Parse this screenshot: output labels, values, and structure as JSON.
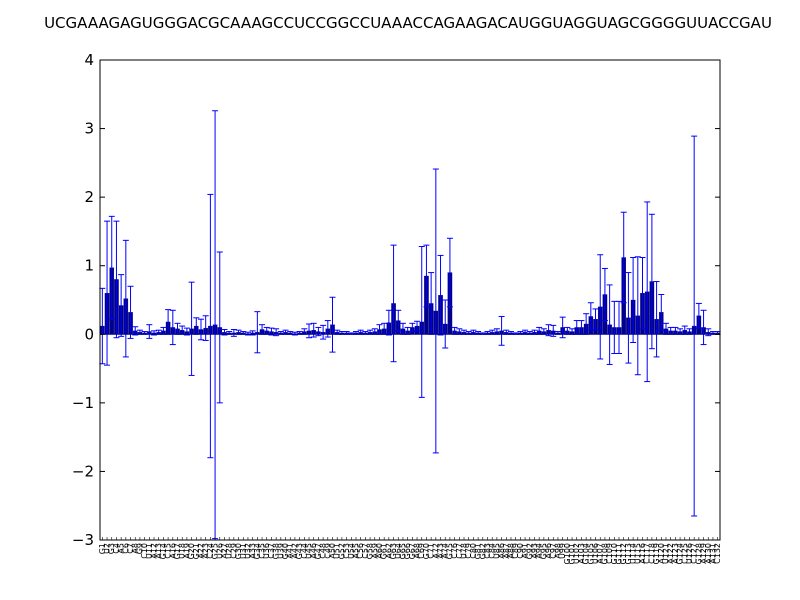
{
  "chart_data": {
    "type": "bar",
    "title": "UCGAAAGAGUGGGACGCAAAGCCUCCGGCCUAAACCAGAAGACAUGGUAGGUAGCGGGGUUACCGAU",
    "xlabel": "",
    "ylabel": "",
    "ylim": [
      -3,
      4
    ],
    "yticks": [
      "−3",
      "−2",
      "−1",
      "0",
      "1",
      "2",
      "3",
      "4"
    ],
    "grid": false,
    "bar_color": "#00008b",
    "errorbar_color": "#0000ff",
    "categories": [
      "G1",
      "U2",
      "G3",
      "C4",
      "A5",
      "C6",
      "C7",
      "A8",
      "G9",
      "C10",
      "U11",
      "A12",
      "A13",
      "G14",
      "C15",
      "A16",
      "G17",
      "U18",
      "A19",
      "G20",
      "G21",
      "A22",
      "A23",
      "C24",
      "G25",
      "U26",
      "A27",
      "U28",
      "C29",
      "G30",
      "U31",
      "U32",
      "A33",
      "G34",
      "C35",
      "U36",
      "C37",
      "G38",
      "U39",
      "G40",
      "A41",
      "A42",
      "G43",
      "C44",
      "U45",
      "A46",
      "G47",
      "C48",
      "C49",
      "A50",
      "U51",
      "G52",
      "C53",
      "U54",
      "A55",
      "C56",
      "C57",
      "G58",
      "A59",
      "A60",
      "G61",
      "A62",
      "G63",
      "U64",
      "G65",
      "G66",
      "G67",
      "A68",
      "C69",
      "G70",
      "C71",
      "A72",
      "A73",
      "A74",
      "G75",
      "C76",
      "C77",
      "U78",
      "C79",
      "C80",
      "G81",
      "G82",
      "C83",
      "C84",
      "U85",
      "A86",
      "A87",
      "A88",
      "C89",
      "C90",
      "A91",
      "G92",
      "A93",
      "A94",
      "G95",
      "A96",
      "C97",
      "A98",
      "U99",
      "G100",
      "G101",
      "U102",
      "A103",
      "G104",
      "G105",
      "U106",
      "A107",
      "G108",
      "C109",
      "G110",
      "G111",
      "G112",
      "G113",
      "U114",
      "U115",
      "A116",
      "C117",
      "C118",
      "G119",
      "A120",
      "U121",
      "A122",
      "A123",
      "G124",
      "C125",
      "U126",
      "C127",
      "G128",
      "A129",
      "A130",
      "A131",
      "C132"
    ],
    "series": [
      {
        "values": [
          0.12,
          0.6,
          0.97,
          0.8,
          0.42,
          0.52,
          0.32,
          0.05,
          0.03,
          0.02,
          0.04,
          0.02,
          0.03,
          0.05,
          0.18,
          0.1,
          0.08,
          0.06,
          0.04,
          0.08,
          0.12,
          0.07,
          0.09,
          0.12,
          0.14,
          0.1,
          0.03,
          0.02,
          0.02,
          0.03,
          0.02,
          0.01,
          0.02,
          0.03,
          0.07,
          0.05,
          0.04,
          0.03,
          0.02,
          0.03,
          0.02,
          0.01,
          0.02,
          0.04,
          0.05,
          0.06,
          0.04,
          0.03,
          0.08,
          0.14,
          0.03,
          0.02,
          0.02,
          0.01,
          0.02,
          0.03,
          0.02,
          0.03,
          0.04,
          0.07,
          0.08,
          0.17,
          0.45,
          0.2,
          0.08,
          0.05,
          0.1,
          0.12,
          0.18,
          0.85,
          0.45,
          0.34,
          0.57,
          0.15,
          0.9,
          0.05,
          0.04,
          0.03,
          0.02,
          0.03,
          0.02,
          0.01,
          0.02,
          0.03,
          0.04,
          0.05,
          0.03,
          0.02,
          0.01,
          0.02,
          0.03,
          0.02,
          0.03,
          0.05,
          0.04,
          0.06,
          0.05,
          0.02,
          0.1,
          0.05,
          0.04,
          0.1,
          0.1,
          0.15,
          0.26,
          0.22,
          0.4,
          0.58,
          0.14,
          0.1,
          0.1,
          1.12,
          0.24,
          0.5,
          0.27,
          0.6,
          0.62,
          0.77,
          0.22,
          0.32,
          0.08,
          0.05,
          0.05,
          0.04,
          0.06,
          0.04,
          0.12,
          0.27,
          0.1,
          0.03,
          0.02,
          0.02
        ],
        "errors": [
          0.55,
          1.05,
          0.75,
          0.85,
          0.45,
          0.85,
          0.38,
          0.06,
          0.03,
          0.02,
          0.1,
          0.03,
          0.03,
          0.05,
          0.18,
          0.25,
          0.08,
          0.06,
          0.05,
          0.68,
          0.12,
          0.15,
          0.18,
          1.92,
          3.12,
          1.1,
          0.04,
          0.02,
          0.05,
          0.03,
          0.02,
          0.02,
          0.03,
          0.3,
          0.07,
          0.05,
          0.05,
          0.05,
          0.02,
          0.03,
          0.02,
          0.02,
          0.02,
          0.04,
          0.1,
          0.1,
          0.06,
          0.1,
          0.12,
          0.4,
          0.03,
          0.02,
          0.02,
          0.01,
          0.02,
          0.03,
          0.02,
          0.03,
          0.04,
          0.07,
          0.08,
          0.18,
          0.85,
          0.15,
          0.08,
          0.05,
          0.06,
          0.07,
          1.1,
          0.45,
          0.45,
          2.07,
          0.58,
          0.35,
          0.5,
          0.05,
          0.04,
          0.03,
          0.02,
          0.03,
          0.02,
          0.01,
          0.02,
          0.03,
          0.04,
          0.21,
          0.03,
          0.02,
          0.01,
          0.02,
          0.03,
          0.02,
          0.03,
          0.05,
          0.04,
          0.08,
          0.08,
          0.02,
          0.15,
          0.05,
          0.04,
          0.1,
          0.1,
          0.15,
          0.2,
          0.15,
          0.76,
          0.38,
          0.58,
          0.38,
          0.38,
          0.66,
          0.66,
          0.62,
          0.86,
          0.52,
          1.31,
          0.98,
          0.55,
          0.26,
          0.08,
          0.05,
          0.05,
          0.04,
          0.06,
          0.04,
          2.77,
          0.18,
          0.25,
          0.05,
          0.02,
          0.02
        ]
      }
    ]
  }
}
